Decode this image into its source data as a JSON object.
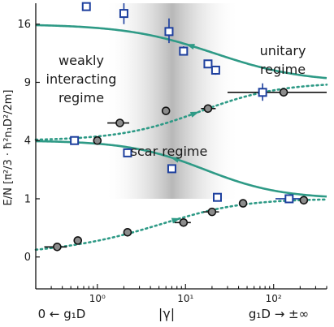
{
  "chart_data": {
    "type": "scatter",
    "ylabel": "E/N [π²/3 · ħ²n₁D²/2m]",
    "xlabel": "|γ|",
    "xlabel_left": "0 ← g₁D",
    "xlabel_right": "g₁D → ±∞",
    "x_scale": "log",
    "xlim": [
      0.2,
      400
    ],
    "y_scale": "sqrt",
    "ylim": [
      -0.3,
      19
    ],
    "yticks": [
      0,
      1,
      4,
      9,
      16
    ],
    "xticks": [
      {
        "value": 1,
        "label": "10⁰"
      },
      {
        "value": 10,
        "label": "10¹"
      },
      {
        "value": 100,
        "label": "10²"
      }
    ],
    "annotations": {
      "left": [
        "weakly",
        "interacting",
        "regime"
      ],
      "right": [
        "unitary",
        "regime"
      ],
      "middle": [
        "scar regime"
      ]
    },
    "shaded_region": {
      "x_from": 2.5,
      "x_to": 20
    },
    "colors": {
      "curve": "#2e9a86",
      "square": "#1d3f9e",
      "circle_fill": "#8c8c8c",
      "shade": "#b8b8b8"
    },
    "series": [
      {
        "marker": "square",
        "points": [
          {
            "x": 0.55,
            "y": 4.0
          },
          {
            "x": 2.2,
            "y": 3.2
          },
          {
            "x": 7.0,
            "y": 2.3
          },
          {
            "x": 23,
            "y": 1.05
          },
          {
            "x": 150,
            "y": 1.0,
            "xerr": [
              105,
              210
            ]
          },
          {
            "x": 0.75,
            "y": 18.5
          },
          {
            "x": 2.0,
            "y": 17.5,
            "yerr": [
              16.0,
              19.0
            ]
          },
          {
            "x": 6.5,
            "y": 15.0,
            "yerr": [
              13.5,
              16.8
            ]
          },
          {
            "x": 9.5,
            "y": 12.5,
            "yerr": [
              12.0,
              13.1
            ]
          },
          {
            "x": 18,
            "y": 11.0
          },
          {
            "x": 22,
            "y": 10.3,
            "yerr": [
              9.8,
              10.8
            ]
          },
          {
            "x": 75,
            "y": 8.0,
            "yerr": [
              7.2,
              8.9
            ]
          }
        ]
      },
      {
        "marker": "circle",
        "points": [
          {
            "x": 0.35,
            "y": 0.03,
            "xerr": [
              0.25,
              0.45
            ]
          },
          {
            "x": 0.6,
            "y": 0.08
          },
          {
            "x": 2.2,
            "y": 0.18
          },
          {
            "x": 9.5,
            "y": 0.35,
            "xerr": [
              7.5,
              11.5
            ]
          },
          {
            "x": 20,
            "y": 0.6,
            "xerr": [
              16,
              24
            ]
          },
          {
            "x": 45,
            "y": 0.85
          },
          {
            "x": 220,
            "y": 0.95
          },
          {
            "x": 1.0,
            "y": 4.0
          },
          {
            "x": 1.8,
            "y": 5.3,
            "xerr": [
              1.3,
              2.3
            ]
          },
          {
            "x": 6.0,
            "y": 6.3
          },
          {
            "x": 18,
            "y": 6.5,
            "xerr": [
              15,
              22
            ]
          },
          {
            "x": 130,
            "y": 8.0,
            "xerr": [
              30,
              400
            ]
          }
        ]
      }
    ],
    "curves": [
      {
        "style": "solid",
        "from": 16,
        "to": 9,
        "center": 18,
        "width": 0.5
      },
      {
        "style": "solid",
        "from": 4,
        "to": 1,
        "center": 12,
        "width": 0.42
      },
      {
        "style": "dotted",
        "from": 4,
        "to": 9,
        "center": 18,
        "width": 0.45
      },
      {
        "style": "dotted",
        "from": 0,
        "to": 1,
        "center": 11,
        "width": 0.42
      }
    ]
  }
}
